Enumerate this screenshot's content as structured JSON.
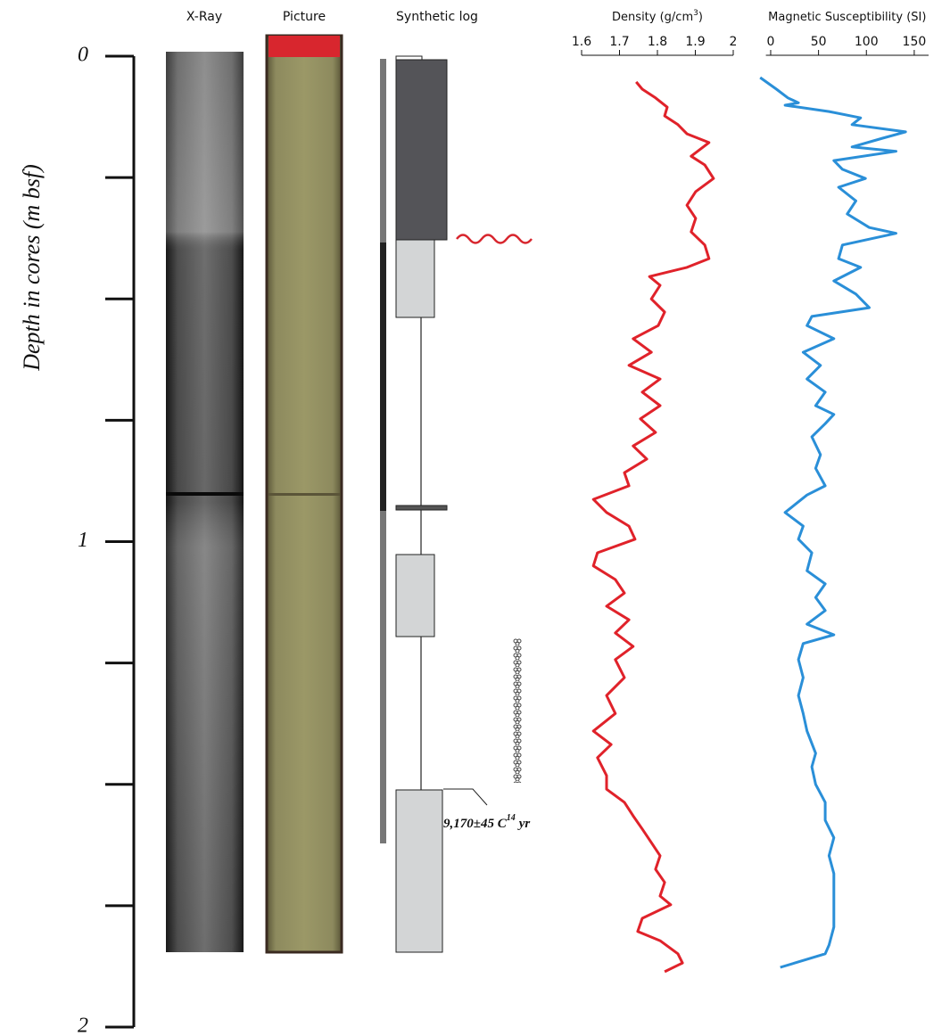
{
  "headers": [
    "X-Ray",
    "Picture",
    "Synthetic log"
  ],
  "depth_axis": {
    "label": "Depth in cores (m bsf)",
    "ylim": [
      0,
      2
    ],
    "yticks": [
      0,
      1,
      2
    ],
    "yminorticks": [
      0.25,
      0.5,
      0.75,
      1.25,
      1.5,
      1.75
    ]
  },
  "annotation": [
    "9,170±45 C",
    "14",
    "yr"
  ],
  "chart_data": [
    {
      "type": "line",
      "title": [
        "Density (g/cm",
        "3",
        ")"
      ],
      "xlim": [
        1.6,
        2
      ],
      "xticks": [
        1.6,
        1.7,
        1.8,
        1.9,
        2
      ],
      "ylim": [
        0,
        2
      ],
      "series": [
        {
          "color": "#e0222a",
          "depth": [
            0.053,
            0.068,
            0.086,
            0.105,
            0.123,
            0.141,
            0.16,
            0.178,
            0.206,
            0.224,
            0.252,
            0.279,
            0.307,
            0.334,
            0.362,
            0.389,
            0.417,
            0.435,
            0.454,
            0.472,
            0.5,
            0.527,
            0.555,
            0.582,
            0.61,
            0.637,
            0.665,
            0.692,
            0.72,
            0.747,
            0.775,
            0.803,
            0.83,
            0.858,
            0.885,
            0.913,
            0.94,
            0.968,
            0.995,
            1.023,
            1.05,
            1.078,
            1.106,
            1.133,
            1.161,
            1.188,
            1.216,
            1.243,
            1.28,
            1.317,
            1.354,
            1.39,
            1.418,
            1.445,
            1.482,
            1.51,
            1.537,
            1.565,
            1.592,
            1.62,
            1.647,
            1.675,
            1.702,
            1.73,
            1.748,
            1.776,
            1.803,
            1.822,
            1.849,
            1.868,
            1.886
          ],
          "values": [
            1.744,
            1.76,
            1.795,
            1.826,
            1.819,
            1.854,
            1.878,
            1.936,
            1.889,
            1.925,
            1.948,
            1.901,
            1.878,
            1.901,
            1.889,
            1.925,
            1.936,
            1.878,
            1.779,
            1.807,
            1.784,
            1.819,
            1.802,
            1.736,
            1.784,
            1.725,
            1.807,
            1.76,
            1.807,
            1.755,
            1.795,
            1.736,
            1.772,
            1.713,
            1.725,
            1.631,
            1.666,
            1.725,
            1.741,
            1.642,
            1.631,
            1.689,
            1.713,
            1.666,
            1.725,
            1.689,
            1.736,
            1.689,
            1.713,
            1.666,
            1.689,
            1.631,
            1.678,
            1.642,
            1.666,
            1.666,
            1.713,
            1.736,
            1.76,
            1.784,
            1.807,
            1.795,
            1.819,
            1.807,
            1.835,
            1.76,
            1.748,
            1.807,
            1.854,
            1.866,
            1.819
          ]
        }
      ]
    },
    {
      "type": "line",
      "title": [
        "Magnetic Susceptibility (SI)"
      ],
      "xlim": [
        -5,
        165
      ],
      "xticks": [
        0,
        50,
        100,
        150
      ],
      "ylim": [
        0,
        2
      ],
      "series": [
        {
          "color": "#2a8fd8",
          "depth": [
            0.044,
            0.068,
            0.086,
            0.096,
            0.101,
            0.114,
            0.127,
            0.141,
            0.156,
            0.169,
            0.187,
            0.196,
            0.215,
            0.233,
            0.252,
            0.27,
            0.298,
            0.325,
            0.353,
            0.365,
            0.389,
            0.417,
            0.435,
            0.463,
            0.49,
            0.518,
            0.536,
            0.555,
            0.582,
            0.61,
            0.637,
            0.665,
            0.692,
            0.72,
            0.738,
            0.757,
            0.784,
            0.821,
            0.849,
            0.885,
            0.904,
            0.94,
            0.968,
            0.995,
            1.023,
            1.06,
            1.087,
            1.115,
            1.142,
            1.17,
            1.192,
            1.21,
            1.243,
            1.28,
            1.317,
            1.354,
            1.39,
            1.436,
            1.464,
            1.5,
            1.537,
            1.574,
            1.61,
            1.647,
            1.684,
            1.72,
            1.757,
            1.794,
            1.831,
            1.849,
            1.877
          ],
          "values": [
            -11,
            6,
            18,
            29,
            15,
            61,
            94,
            85,
            141,
            117,
            85,
            131,
            66,
            75,
            99,
            71,
            89,
            80,
            103,
            131,
            75,
            71,
            94,
            66,
            89,
            103,
            43,
            38,
            66,
            34,
            52,
            38,
            57,
            47,
            66,
            57,
            43,
            52,
            47,
            57,
            38,
            15,
            34,
            29,
            43,
            38,
            57,
            47,
            57,
            38,
            66,
            34,
            29,
            34,
            29,
            34,
            38,
            47,
            43,
            47,
            57,
            57,
            66,
            61,
            66,
            66,
            66,
            66,
            61,
            57,
            10
          ]
        }
      ]
    }
  ]
}
